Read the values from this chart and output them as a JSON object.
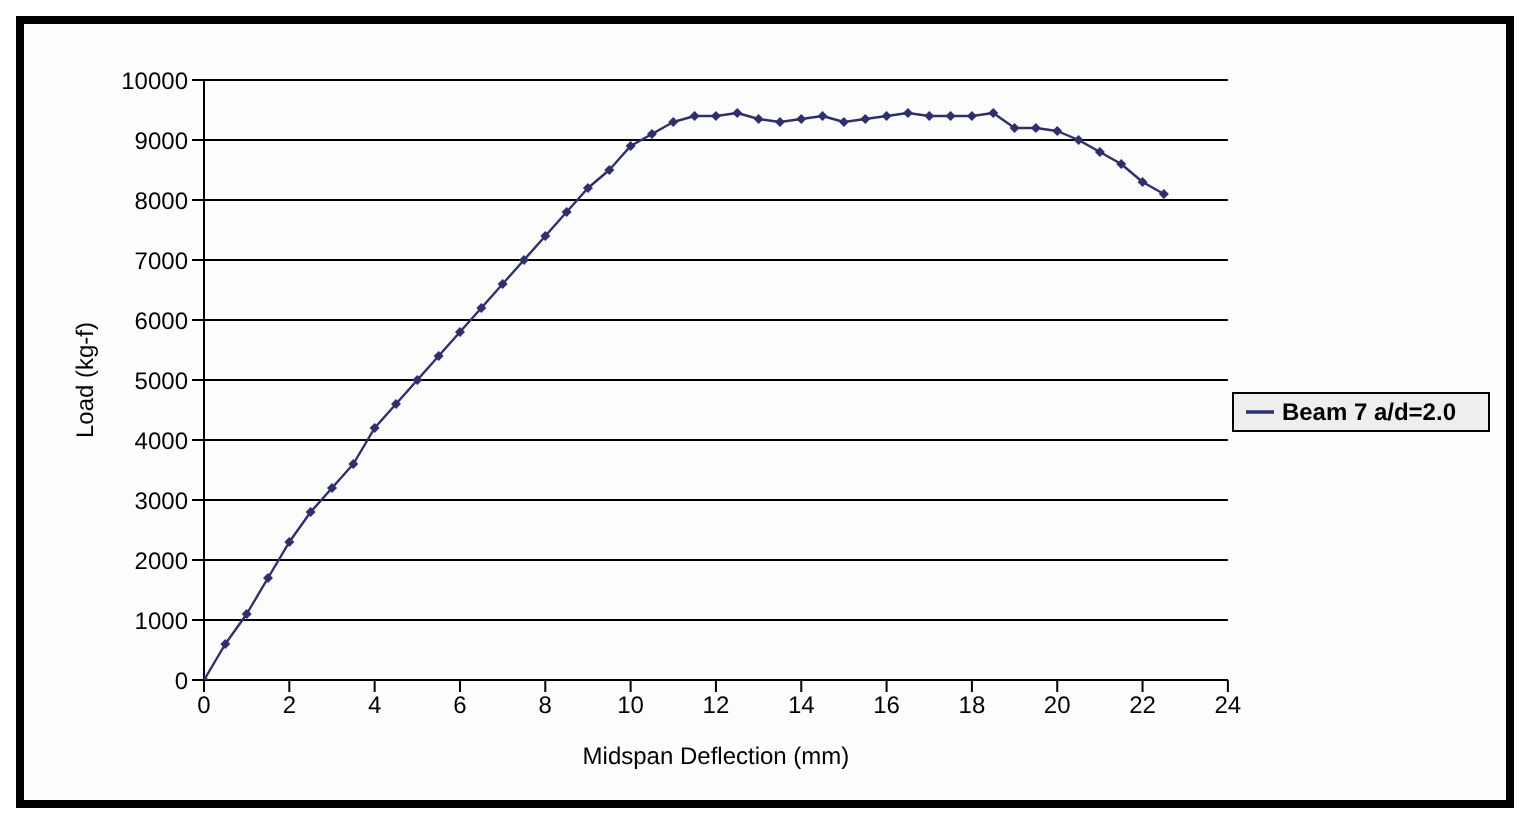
{
  "chart_data": {
    "type": "line",
    "xlabel": "Midspan Deflection (mm)",
    "ylabel": "Load (kg-f)",
    "xlim": [
      0,
      24
    ],
    "xticks": [
      0,
      2,
      4,
      6,
      8,
      10,
      12,
      14,
      16,
      18,
      20,
      22,
      24
    ],
    "ylim": [
      0,
      10000
    ],
    "yticks": [
      0,
      1000,
      2000,
      3000,
      4000,
      5000,
      6000,
      7000,
      8000,
      9000,
      10000
    ],
    "grid": "y",
    "legend": "right",
    "marker": "diamond",
    "line_style": "solid",
    "x": [
      0,
      0.5,
      1,
      1.5,
      2,
      2.5,
      3,
      3.5,
      4,
      4.5,
      5,
      5.5,
      6,
      6.5,
      7,
      7.5,
      8,
      8.5,
      9,
      9.5,
      10,
      10.5,
      11,
      11.5,
      12,
      12.5,
      13,
      13.5,
      14,
      14.5,
      15,
      15.5,
      16,
      16.5,
      17,
      17.5,
      18,
      18.5,
      19,
      19.5,
      20,
      20.5,
      21,
      21.5,
      22,
      22.5
    ],
    "series": [
      {
        "name": "Beam 7 a/d=2.0",
        "color": "#2e2f6b",
        "values": [
          0,
          600,
          1100,
          1700,
          2300,
          2800,
          3200,
          3600,
          4200,
          4600,
          5000,
          5400,
          5800,
          6200,
          6600,
          7000,
          7400,
          7800,
          8200,
          8500,
          8900,
          9100,
          9300,
          9400,
          9400,
          9450,
          9350,
          9300,
          9350,
          9400,
          9300,
          9350,
          9400,
          9450,
          9400,
          9400,
          9400,
          9450,
          9200,
          9200,
          9150,
          9000,
          8800,
          8600,
          8300,
          8100
        ]
      }
    ]
  }
}
